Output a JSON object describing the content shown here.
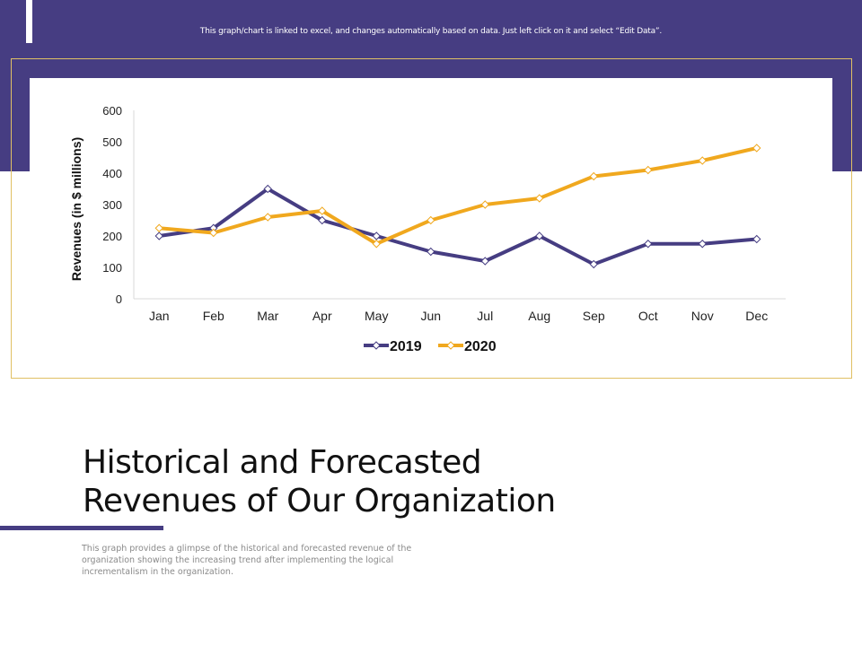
{
  "header": {
    "notice": "This graph/chart is linked to excel, and changes automatically based on data. Just left click on it and select “Edit Data”."
  },
  "colors": {
    "band": "#463d82",
    "series_2019": "#463d82",
    "series_2020": "#f0a81e",
    "frame": "#e0c064"
  },
  "slide": {
    "title_line1": "Historical and Forecasted",
    "title_line2": "Revenues of Our Organization",
    "description": "This graph provides a glimpse of the historical and forecasted revenue of the organization showing the increasing trend after implementing the logical incrementalism in the organization."
  },
  "chart_data": {
    "type": "line",
    "title": "",
    "xlabel": "",
    "ylabel": "Revenues (in $ millions)",
    "categories": [
      "Jan",
      "Feb",
      "Mar",
      "Apr",
      "May",
      "Jun",
      "Jul",
      "Aug",
      "Sep",
      "Oct",
      "Nov",
      "Dec"
    ],
    "ylim": [
      0,
      600
    ],
    "yticks": [
      0,
      100,
      200,
      300,
      400,
      500,
      600
    ],
    "grid": false,
    "legend": "bottom-center",
    "marker": "diamond",
    "series": [
      {
        "name": "2019",
        "color": "#463d82",
        "values": [
          200,
          225,
          350,
          250,
          200,
          150,
          120,
          200,
          110,
          175,
          175,
          190
        ]
      },
      {
        "name": "2020",
        "color": "#f0a81e",
        "values": [
          225,
          210,
          260,
          280,
          175,
          250,
          300,
          320,
          390,
          410,
          440,
          480
        ]
      }
    ]
  }
}
